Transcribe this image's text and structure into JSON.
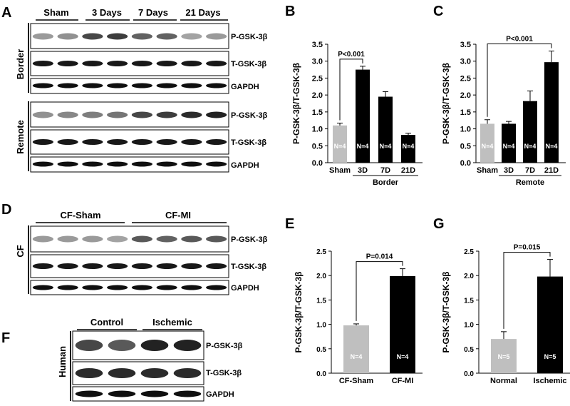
{
  "panels": {
    "A": {
      "letter": "A",
      "groups": [
        "Sham",
        "3 Days",
        "7 Days",
        "21 Days"
      ],
      "sections": [
        {
          "label": "Border",
          "blots": [
            "P-GSK-3β",
            "T-GSK-3β",
            "GAPDH"
          ],
          "p_intensity": [
            0.25,
            0.3,
            0.7,
            0.75,
            0.55,
            0.55,
            0.2,
            0.25
          ]
        },
        {
          "label": "Remote",
          "blots": [
            "P-GSK-3β",
            "T-GSK-3β",
            "GAPDH"
          ],
          "p_intensity": [
            0.3,
            0.35,
            0.4,
            0.45,
            0.7,
            0.75,
            0.85,
            0.9
          ]
        }
      ]
    },
    "D": {
      "letter": "D",
      "groups": [
        "CF-Sham",
        "CF-MI"
      ],
      "side_label": "CF",
      "blots": [
        "P-GSK-3β",
        "T-GSK-3β",
        "GAPDH"
      ],
      "p_intensity": [
        0.25,
        0.25,
        0.25,
        0.2,
        0.6,
        0.55,
        0.6,
        0.6
      ]
    },
    "F": {
      "letter": "F",
      "groups": [
        "Control",
        "Ischemic"
      ],
      "side_label": "Human",
      "blots": [
        "P-GSK-3β",
        "T-GSK-3β",
        "GAPDH"
      ],
      "p_intensity": [
        0.7,
        0.6,
        0.9,
        0.9
      ]
    }
  },
  "chart_data": [
    {
      "panel": "B",
      "type": "bar",
      "ylabel": "P-GSK-3β/T-GSK-3β",
      "categories": [
        "Sham",
        "3D",
        "7D",
        "21D"
      ],
      "values": [
        1.1,
        2.75,
        1.95,
        0.82
      ],
      "errors": [
        0.07,
        0.1,
        0.15,
        0.05
      ],
      "n_labels": [
        "N=4",
        "N=4",
        "N=4",
        "N=4"
      ],
      "colors": [
        "#bfbfbf",
        "#000000",
        "#000000",
        "#000000"
      ],
      "ylim": [
        0,
        3.5
      ],
      "yticks": [
        "0.0",
        "0.5",
        "1.0",
        "1.5",
        "2.0",
        "2.5",
        "3.0",
        "3.5"
      ],
      "ystep": 0.5,
      "group_label": "Border",
      "annotation": {
        "text": "P<0.001",
        "from": 0,
        "to": 1
      }
    },
    {
      "panel": "C",
      "type": "bar",
      "ylabel": "P-GSK-3β/T-GSK-3β",
      "categories": [
        "Sham",
        "3D",
        "7D",
        "21D"
      ],
      "values": [
        1.15,
        1.15,
        1.82,
        2.97
      ],
      "errors": [
        0.12,
        0.07,
        0.3,
        0.33
      ],
      "n_labels": [
        "N=4",
        "N=4",
        "N=4",
        "N=4"
      ],
      "colors": [
        "#bfbfbf",
        "#000000",
        "#000000",
        "#000000"
      ],
      "ylim": [
        0,
        3.5
      ],
      "yticks": [
        "0.0",
        "0.5",
        "1.0",
        "1.5",
        "2.0",
        "2.5",
        "3.0",
        "3.5"
      ],
      "ystep": 0.5,
      "group_label": "Remote",
      "annotation": {
        "text": "P<0.001",
        "from": 0,
        "to": 3
      }
    },
    {
      "panel": "E",
      "type": "bar",
      "ylabel": "P-GSK-3β/T-GSK-3β",
      "categories": [
        "CF-Sham",
        "CF-MI"
      ],
      "values": [
        0.98,
        1.99
      ],
      "errors": [
        0.03,
        0.15
      ],
      "n_labels": [
        "N=4",
        "N=4"
      ],
      "colors": [
        "#bfbfbf",
        "#000000"
      ],
      "ylim": [
        0,
        2.5
      ],
      "yticks": [
        "0.0",
        "0.5",
        "1.0",
        "1.5",
        "2.0",
        "2.5"
      ],
      "ystep": 0.5,
      "group_label": "",
      "annotation": {
        "text": "P=0.014",
        "from": 0,
        "to": 1
      }
    },
    {
      "panel": "G",
      "type": "bar",
      "ylabel": "P-GSK-3β/T-GSK-3β",
      "categories": [
        "Normal",
        "Ischemic"
      ],
      "values": [
        0.7,
        1.98
      ],
      "errors": [
        0.15,
        0.35
      ],
      "n_labels": [
        "N=5",
        "N=5"
      ],
      "colors": [
        "#bfbfbf",
        "#000000"
      ],
      "ylim": [
        0,
        2.5
      ],
      "yticks": [
        "0.0",
        "0.5",
        "1.0",
        "1.5",
        "2.0",
        "2.5"
      ],
      "ystep": 0.5,
      "group_label": "",
      "annotation": {
        "text": "P=0.015",
        "from": 0,
        "to": 1
      }
    }
  ]
}
